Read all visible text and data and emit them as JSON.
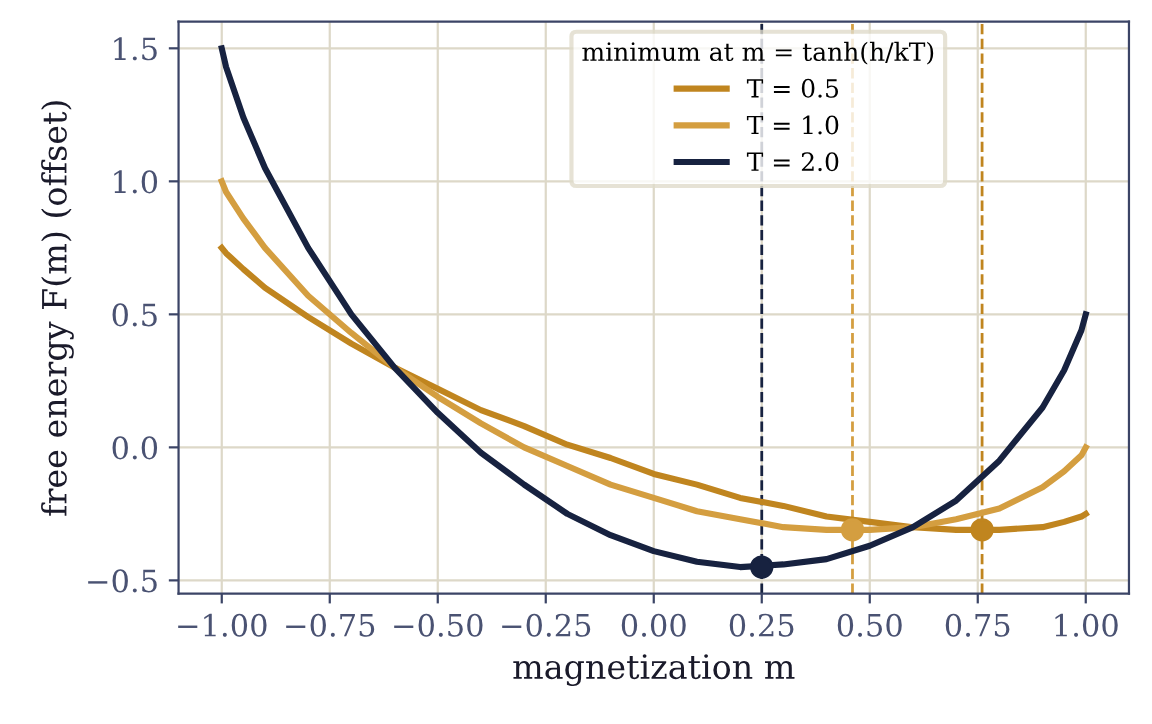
{
  "chart_data": {
    "type": "line",
    "xlabel": "magnetization m",
    "ylabel": "free energy F(m) (offset)",
    "legend_title": "minimum at m = tanh(h/kT)",
    "x": [
      -1,
      -0.99,
      -0.95,
      -0.9,
      -0.8,
      -0.7,
      -0.6,
      -0.5,
      -0.4,
      -0.3,
      -0.2,
      -0.1,
      0,
      0.1,
      0.2,
      0.3,
      0.4,
      0.5,
      0.6,
      0.7,
      0.8,
      0.9,
      0.95,
      0.99,
      1
    ],
    "series": [
      {
        "name": "T = 0.5",
        "color": "#c0851f",
        "values": [
          0.75,
          0.73,
          0.67,
          0.6,
          0.49,
          0.39,
          0.3,
          0.22,
          0.14,
          0.08,
          0.01,
          -0.04,
          -0.1,
          -0.14,
          -0.19,
          -0.22,
          -0.26,
          -0.28,
          -0.3,
          -0.31,
          -0.31,
          -0.3,
          -0.28,
          -0.26,
          -0.25
        ]
      },
      {
        "name": "T = 1.0",
        "color": "#d49e40",
        "values": [
          1.0,
          0.96,
          0.86,
          0.75,
          0.57,
          0.43,
          0.3,
          0.19,
          0.09,
          0.0,
          -0.07,
          -0.14,
          -0.19,
          -0.24,
          -0.27,
          -0.3,
          -0.31,
          -0.31,
          -0.3,
          -0.27,
          -0.23,
          -0.15,
          -0.09,
          -0.03,
          0.0
        ]
      },
      {
        "name": "T = 2.0",
        "color": "#172240",
        "values": [
          1.5,
          1.43,
          1.24,
          1.05,
          0.75,
          0.5,
          0.3,
          0.13,
          -0.02,
          -0.14,
          -0.25,
          -0.33,
          -0.39,
          -0.43,
          -0.45,
          -0.44,
          -0.42,
          -0.37,
          -0.3,
          -0.2,
          -0.05,
          0.15,
          0.29,
          0.44,
          0.5
        ]
      },
      {
        "type": "scatter",
        "marker": "circle",
        "x": [
          0.76,
          0.46,
          0.25
        ],
        "values": [
          -0.31,
          -0.31,
          -0.45
        ],
        "colors": [
          "#c0851f",
          "#d49e40",
          "#172240"
        ]
      }
    ],
    "ref_lines": [
      {
        "axis": "x",
        "value": 0.76,
        "color": "#c0851f",
        "line_style": "dashed"
      },
      {
        "axis": "x",
        "value": 0.46,
        "color": "#d49e40",
        "line_style": "dashed"
      },
      {
        "axis": "x",
        "value": 0.25,
        "color": "#172240",
        "line_style": "dashed"
      }
    ],
    "xlim": [
      -1.1,
      1.1
    ],
    "ylim": [
      -0.55,
      1.6
    ],
    "xticks": [
      {
        "value": -1,
        "label": "−1.00"
      },
      {
        "value": -0.75,
        "label": "−0.75"
      },
      {
        "value": -0.5,
        "label": "−0.50"
      },
      {
        "value": -0.25,
        "label": "−0.25"
      },
      {
        "value": 0,
        "label": "0.00"
      },
      {
        "value": 0.25,
        "label": "0.25"
      },
      {
        "value": 0.5,
        "label": "0.50"
      },
      {
        "value": 0.75,
        "label": "0.75"
      },
      {
        "value": 1,
        "label": "1.00"
      }
    ],
    "yticks": [
      {
        "value": -0.5,
        "label": "−0.5"
      },
      {
        "value": 0,
        "label": "0.0"
      },
      {
        "value": 0.5,
        "label": "0.5"
      },
      {
        "value": 1,
        "label": "1.0"
      },
      {
        "value": 1.5,
        "label": "1.5"
      }
    ],
    "grid": true,
    "legend": "top",
    "marker": "none",
    "line_style": "solid"
  }
}
